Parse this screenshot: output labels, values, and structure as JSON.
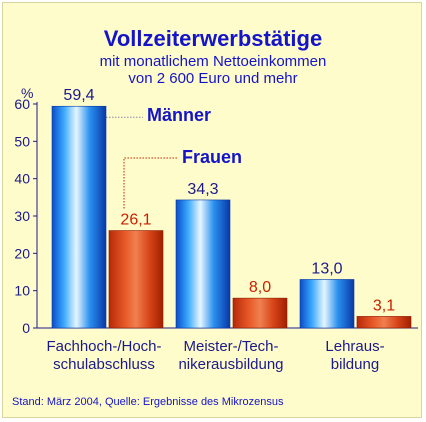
{
  "chart_data": {
    "type": "bar",
    "title": "Vollzeiterwerbstätige",
    "subtitle_lines": [
      "mit monatlichem Nettoeinkommen",
      "von 2 600 Euro und mehr"
    ],
    "ylabel": "%",
    "ylim": [
      0,
      60
    ],
    "yticks": [
      0,
      10,
      20,
      30,
      40,
      50,
      60
    ],
    "grid": false,
    "legend_placement": "inline-top",
    "categories": [
      [
        "Fachhoch-/Hoch-",
        "schulabschluss"
      ],
      [
        "Meister-/Tech-",
        "nikerausbildung"
      ],
      [
        "Lehraus-",
        "bildung"
      ]
    ],
    "series": [
      {
        "name": "Männer",
        "values": [
          59.4,
          34.3,
          13.0
        ],
        "labels": [
          "59,4",
          "34,3",
          "13,0"
        ],
        "color": "#1e8cf0"
      },
      {
        "name": "Frauen",
        "values": [
          26.1,
          8.0,
          3.1
        ],
        "labels": [
          "26,1",
          "8,0",
          "3,1"
        ],
        "color": "#dd4a1e"
      }
    ],
    "source": "Stand: März 2004, Quelle: Ergebnisse des Mikrozensus"
  }
}
